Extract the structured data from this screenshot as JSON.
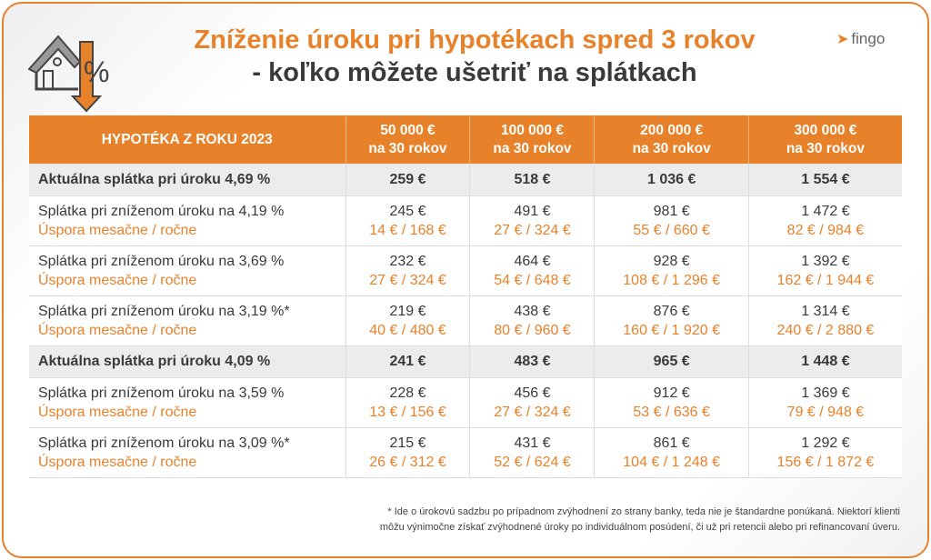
{
  "header": {
    "title_line1": "Zníženie úroku pri hypotékach spred 3 rokov",
    "title_line2": "- koľko môžete ušetriť na splátkach",
    "brand": "fingo",
    "icon": "house-percent-down-arrow-icon"
  },
  "colors": {
    "accent": "#e8822a",
    "text": "#3a3a3a",
    "highlight_row": "#ececec"
  },
  "table": {
    "headers": [
      {
        "l1": "HYPOTÉKA Z ROKU 2023",
        "l2": ""
      },
      {
        "l1": "50 000 €",
        "l2": "na 30 rokov"
      },
      {
        "l1": "100 000 €",
        "l2": "na 30 rokov"
      },
      {
        "l1": "200 000 €",
        "l2": "na 30 rokov"
      },
      {
        "l1": "300 000 €",
        "l2": "na 30 rokov"
      }
    ],
    "rows": [
      {
        "type": "current",
        "label": "Aktuálna splátka pri úroku 4,69 %",
        "values": [
          "259 €",
          "518 €",
          "1 036 €",
          "1 554 €"
        ]
      },
      {
        "type": "reduced",
        "label": "Splátka pri zníženom úroku na 4,19 %",
        "sub_label": "Úspora mesačne / ročne",
        "values": [
          "245 €",
          "491 €",
          "981 €",
          "1 472 €"
        ],
        "savings": [
          "14 € / 168 €",
          "27 € / 324 €",
          "55 € / 660 €",
          "82 € / 984 €"
        ]
      },
      {
        "type": "reduced",
        "label": "Splátka pri zníženom úroku na 3,69 %",
        "sub_label": "Úspora mesačne / ročne",
        "values": [
          "232 €",
          "464 €",
          "928 €",
          "1 392 €"
        ],
        "savings": [
          "27 € / 324 €",
          "54 € / 648 €",
          "108 € / 1 296 €",
          "162 € / 1 944 €"
        ]
      },
      {
        "type": "reduced",
        "label": "Splátka pri zníženom úroku na 3,19 %*",
        "sub_label": "Úspora mesačne / ročne",
        "values": [
          "219 €",
          "438 €",
          "876 €",
          "1 314 €"
        ],
        "savings": [
          "40 € / 480 €",
          "80 € / 960 €",
          "160 € / 1 920 €",
          "240 € / 2 880 €"
        ]
      },
      {
        "type": "current",
        "label": "Aktuálna splátka pri úroku 4,09 %",
        "values": [
          "241 €",
          "483 €",
          "965 €",
          "1 448 €"
        ]
      },
      {
        "type": "reduced",
        "label": "Splátka pri zníženom úroku na 3,59 %",
        "sub_label": "Úspora mesačne / ročne",
        "values": [
          "228 €",
          "456 €",
          "912 €",
          "1 369 €"
        ],
        "savings": [
          "13 € / 156 €",
          "27 € / 324 €",
          "53 € / 636 €",
          "79 € / 948 €"
        ]
      },
      {
        "type": "reduced",
        "label": "Splátka pri zníženom úroku na 3,09 %*",
        "sub_label": "Úspora mesačne / ročne",
        "values": [
          "215 €",
          "431 €",
          "861 €",
          "1 292 €"
        ],
        "savings": [
          "26 € / 312 €",
          "52 € / 624 €",
          "104 € / 1 248 €",
          "156 € / 1 872 €"
        ]
      }
    ]
  },
  "footnote": {
    "line1": "* Ide o úrokovú sadzbu po prípadnom zvýhodnení zo strany banky, teda nie je štandardne ponúkaná. Niektorí klienti",
    "line2": "môžu výnimočne získať zvýhodnené úroky po individuálnom posúdení, či už pri retencii alebo pri refinancovaní úveru."
  }
}
